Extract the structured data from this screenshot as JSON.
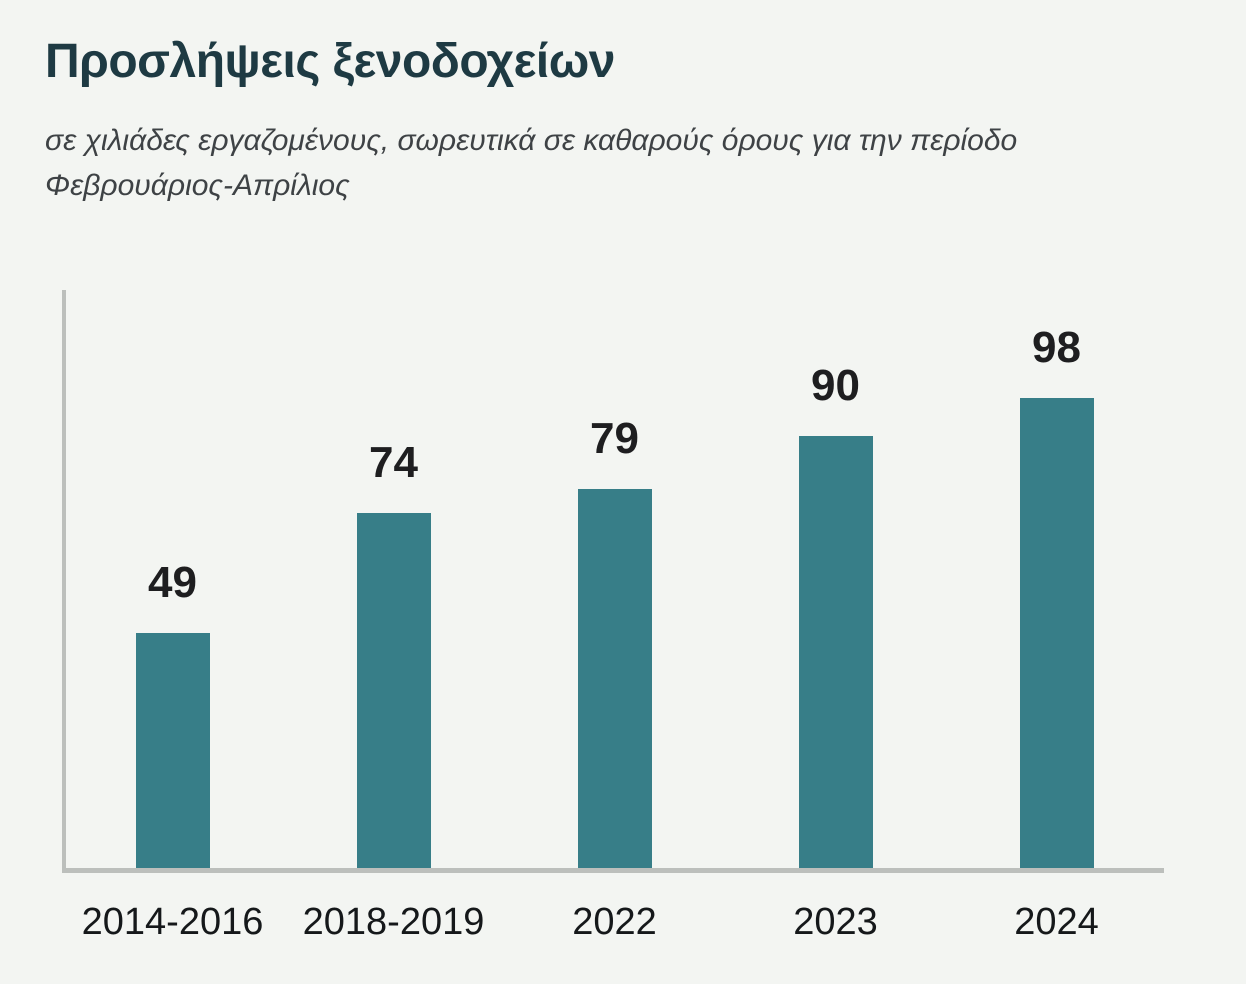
{
  "page": {
    "background_color": "#f3f5f2"
  },
  "chart_data": {
    "type": "bar",
    "title": "Προσλήψεις ξενοδοχείων",
    "subtitle": "σε χιλιάδες εργαζομένους, σωρευτικά σε καθαρούς όρους για την περίοδο Φεβρουάριος-Απρίλιος",
    "categories": [
      "2014-2016",
      "2018-2019",
      "2022",
      "2023",
      "2024"
    ],
    "values": [
      49,
      74,
      79,
      90,
      98
    ],
    "xlabel": "",
    "ylabel": "",
    "ylim": [
      0,
      120
    ],
    "grid": false,
    "legend": false,
    "value_labels_shown": true,
    "colors": {
      "background": "#f3f5f2",
      "bar": "#377e88",
      "title": "#1e3a43",
      "subtitle": "#3e4245",
      "value_label": "#1e1e20",
      "x_axis_label": "#15181a",
      "axis_line": "#bcbfbc"
    }
  }
}
